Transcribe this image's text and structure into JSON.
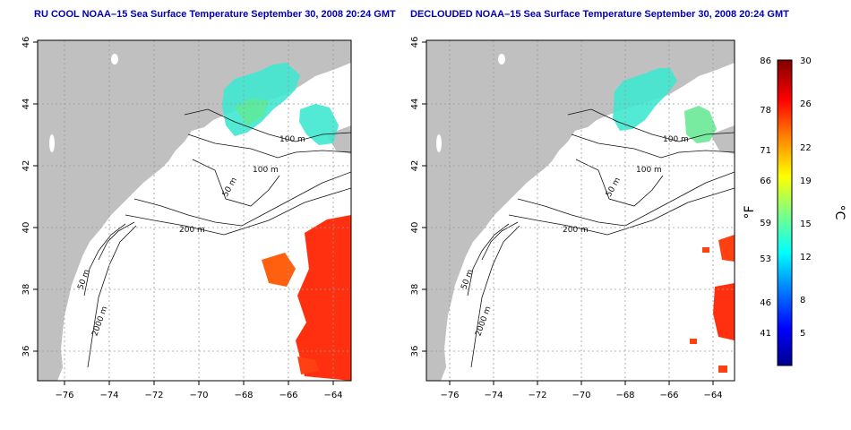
{
  "panels": [
    {
      "title": "RU COOL NOAA–15 Sea Surface Temperature September 30, 2008 20:24 GMT"
    },
    {
      "title": "DECLOUDED NOAA–15 Sea Surface Temperature September 30, 2008 20:24 GMT"
    }
  ],
  "map": {
    "lon_ticks": [
      "−76",
      "−74",
      "−72",
      "−70",
      "−68",
      "−66",
      "−64"
    ],
    "lat_ticks": [
      "46",
      "44",
      "42",
      "40",
      "38",
      "36"
    ],
    "lon_range": [
      -77,
      -63
    ],
    "lat_range": [
      35,
      46
    ],
    "contours": [
      "50 m",
      "100 m",
      "200 m",
      "2000 m",
      "100 m",
      "50 m"
    ],
    "land_color": "#c0c0c0",
    "grid": "dotted"
  },
  "colorbar": {
    "unit_f": "°F",
    "unit_c": "°C",
    "f_ticks": [
      "86",
      "78",
      "71",
      "66",
      "59",
      "53",
      "46",
      "41"
    ],
    "c_ticks": [
      "30",
      "26",
      "22",
      "19",
      "15",
      "12",
      "8",
      "5"
    ],
    "c_range": [
      2,
      30
    ],
    "colors": [
      "#00008f",
      "#0000ff",
      "#0080ff",
      "#00ffff",
      "#80ff80",
      "#ffff00",
      "#ff8000",
      "#ff0000",
      "#800000"
    ]
  }
}
